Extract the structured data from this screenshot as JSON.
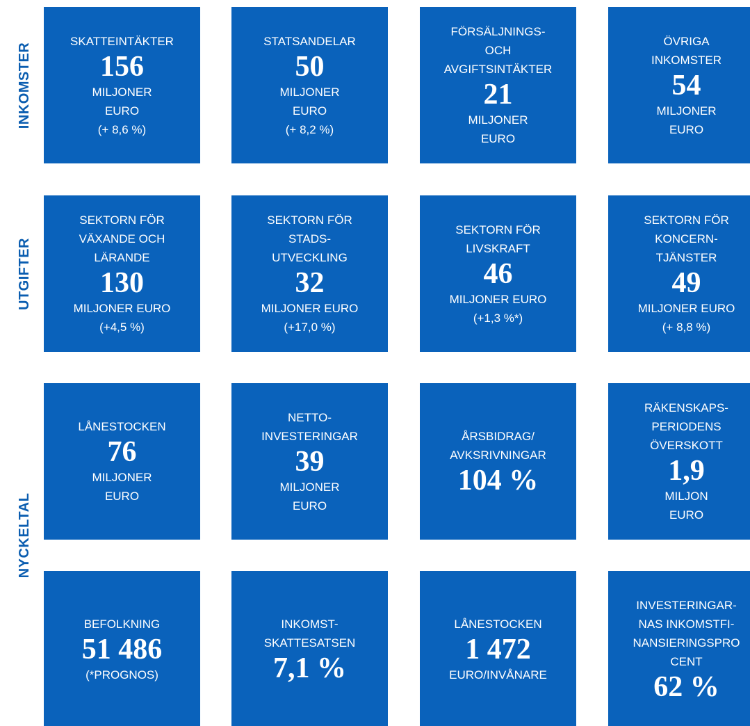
{
  "side_labels": [
    "INKOMSTER",
    "UTGIFTER",
    "NYCKELTAL"
  ],
  "rows": [
    {
      "tiles": [
        {
          "top": [
            "SKATTEINTÄKTER"
          ],
          "value": "156",
          "bottom": [
            "MILJONER",
            "EURO",
            "(+ 8,6 %)"
          ]
        },
        {
          "top": [
            "STATSANDELAR"
          ],
          "value": "50",
          "bottom": [
            "MILJONER",
            "EURO",
            "(+ 8,2 %)"
          ]
        },
        {
          "top": [
            "FÖRSÄLJNINGS-",
            "OCH",
            "AVGIFTSINTÄKTER"
          ],
          "value": "21",
          "bottom": [
            "MILJONER",
            "EURO"
          ]
        },
        {
          "top": [
            "ÖVRIGA",
            "INKOMSTER"
          ],
          "value": "54",
          "bottom": [
            "MILJONER",
            "EURO"
          ]
        }
      ]
    },
    {
      "tiles": [
        {
          "top": [
            "SEKTORN FÖR",
            "VÄXANDE OCH",
            "LÄRANDE"
          ],
          "value": "130",
          "bottom": [
            "MILJONER EURO",
            "(+4,5 %)"
          ]
        },
        {
          "top": [
            "SEKTORN FÖR",
            "STADS-",
            "UTVECKLING"
          ],
          "value": "32",
          "bottom": [
            "MILJONER EURO",
            "(+17,0 %)"
          ]
        },
        {
          "top": [
            "SEKTORN FÖR",
            "LIVSKRAFT"
          ],
          "value": "46",
          "bottom": [
            "MILJONER EURO",
            "(+1,3 %*)"
          ]
        },
        {
          "top": [
            "SEKTORN FÖR",
            "KONCERN-",
            "TJÄNSTER"
          ],
          "value": "49",
          "bottom": [
            "MILJONER EURO",
            "(+ 8,8 %)"
          ]
        }
      ]
    },
    {
      "tiles": [
        {
          "top": [
            "LÅNESTOCKEN"
          ],
          "value": "76",
          "bottom": [
            "MILJONER",
            "EURO"
          ]
        },
        {
          "top": [
            "NETTO-",
            "INVESTERINGAR"
          ],
          "value": "39",
          "bottom": [
            "MILJONER",
            "EURO"
          ]
        },
        {
          "top": [
            "ÅRSBIDRAG/",
            "AVKSRIVNINGAR"
          ],
          "value": "104 %"
        },
        {
          "top": [
            "RÄKENSKAPS-",
            "PERIODENS",
            "ÖVERSKOTT"
          ],
          "value": "1,9",
          "bottom": [
            "MILJON",
            "EURO"
          ]
        }
      ]
    },
    {
      "tiles": [
        {
          "top": [
            "BEFOLKNING"
          ],
          "value": "51 486",
          "bottom": [
            "(*PROGNOS)"
          ]
        },
        {
          "top": [
            "INKOMST-",
            "SKATTESATSEN"
          ],
          "value": "7,1 %"
        },
        {
          "top": [
            "LÅNESTOCKEN"
          ],
          "value": "1 472",
          "bottom": [
            "EURO/INVÅNARE"
          ]
        },
        {
          "top": [
            "INVESTERINGAR-",
            "NAS INKOMSTFI-",
            "NANSIERINGSPRO",
            "CENT"
          ],
          "value": "62 %"
        }
      ]
    }
  ]
}
